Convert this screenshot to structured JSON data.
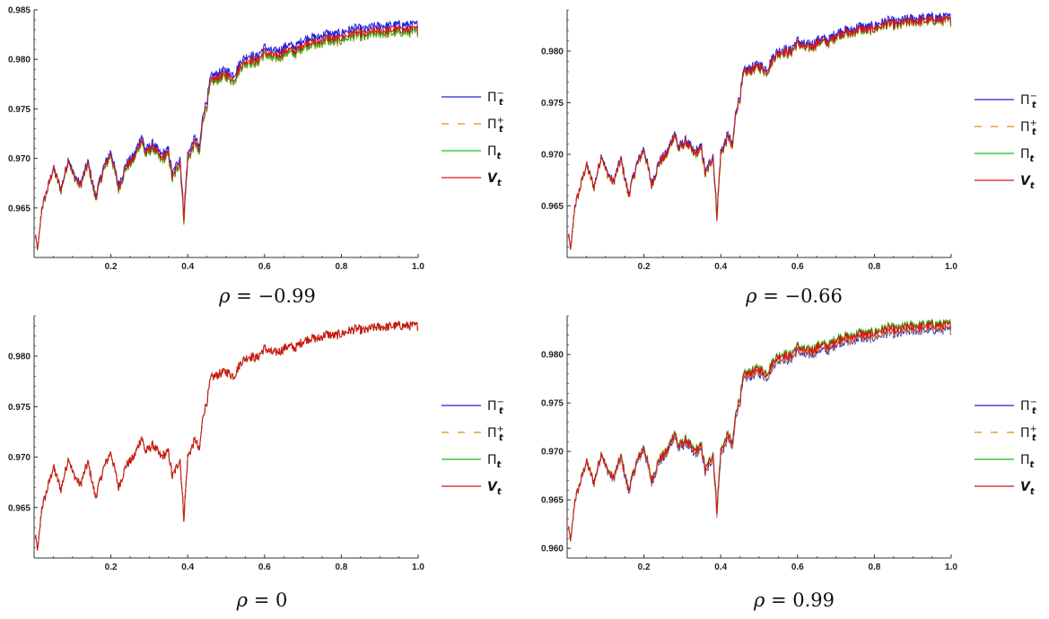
{
  "colors": {
    "pi_minus": "#2222dd",
    "pi_plus": "#e08a1e",
    "pi": "#22bb22",
    "v": "#dd1111",
    "axis": "#333333"
  },
  "chart_data": [
    {
      "type": "line",
      "caption_rho": "ρ",
      "caption_eq": " = ",
      "caption_value": "−0.99",
      "xlim": [
        0,
        1
      ],
      "ylim": [
        0.96,
        0.985
      ],
      "x_ticks": [
        "0.2",
        "0.4",
        "0.6",
        "0.8",
        "1.0"
      ],
      "x_tick_values": [
        0.2,
        0.4,
        0.6,
        0.8,
        1.0
      ],
      "y_ticks": [
        "0.965",
        "0.970",
        "0.975",
        "0.980",
        "0.985"
      ],
      "y_tick_values": [
        0.965,
        0.97,
        0.975,
        0.98,
        0.985
      ],
      "offsets": {
        "pi_minus": 0.0005,
        "pi_plus": -0.0004,
        "pi": -0.0003,
        "v": 0.0
      }
    },
    {
      "type": "line",
      "caption_rho": "ρ",
      "caption_eq": " = ",
      "caption_value": "−0.66",
      "xlim": [
        0,
        1
      ],
      "ylim": [
        0.96,
        0.984
      ],
      "x_ticks": [
        "0.2",
        "0.4",
        "0.6",
        "0.8",
        "1.0"
      ],
      "x_tick_values": [
        0.2,
        0.4,
        0.6,
        0.8,
        1.0
      ],
      "y_ticks": [
        "0.965",
        "0.970",
        "0.975",
        "0.980"
      ],
      "y_tick_values": [
        0.965,
        0.97,
        0.975,
        0.98
      ],
      "offsets": {
        "pi_minus": 0.0003,
        "pi_plus": -0.0002,
        "pi": -0.0001,
        "v": 0.0
      }
    },
    {
      "type": "line",
      "caption_rho": "ρ",
      "caption_eq": " = ",
      "caption_value": "0",
      "xlim": [
        0,
        1
      ],
      "ylim": [
        0.96,
        0.984
      ],
      "x_ticks": [
        "0.2",
        "0.4",
        "0.6",
        "0.8",
        "1.0"
      ],
      "x_tick_values": [
        0.2,
        0.4,
        0.6,
        0.8,
        1.0
      ],
      "y_ticks": [
        "0.965",
        "0.970",
        "0.975",
        "0.980"
      ],
      "y_tick_values": [
        0.965,
        0.97,
        0.975,
        0.98
      ],
      "offsets": {
        "pi_minus": 0.0,
        "pi_plus": 0.0,
        "pi": 0.0,
        "v": 0.0
      }
    },
    {
      "type": "line",
      "caption_rho": "ρ",
      "caption_eq": " = ",
      "caption_value": "0.99",
      "xlim": [
        0,
        1
      ],
      "ylim": [
        0.959,
        0.984
      ],
      "x_ticks": [
        "0.2",
        "0.4",
        "0.6",
        "0.8",
        "1.0"
      ],
      "x_tick_values": [
        0.2,
        0.4,
        0.6,
        0.8,
        1.0
      ],
      "y_ticks": [
        "0.960",
        "0.965",
        "0.970",
        "0.975",
        "0.980"
      ],
      "y_tick_values": [
        0.96,
        0.965,
        0.97,
        0.975,
        0.98
      ],
      "offsets": {
        "pi_minus": -0.0005,
        "pi_plus": -0.0004,
        "pi": 0.0002,
        "v": 0.0
      }
    }
  ],
  "legend": [
    {
      "key": "pi_minus",
      "symbol": "Π",
      "sub": "t",
      "sup": "−",
      "dashed": false
    },
    {
      "key": "pi_plus",
      "symbol": "Π",
      "sub": "t",
      "sup": "+",
      "dashed": true
    },
    {
      "key": "pi",
      "symbol": "Π",
      "sub": "t",
      "sup": "",
      "dashed": false
    },
    {
      "key": "v",
      "symbol": "V",
      "sub": "t",
      "sup": "",
      "dashed": false
    }
  ],
  "base_path": {
    "x": [
      0.0,
      0.01,
      0.02,
      0.03,
      0.05,
      0.07,
      0.09,
      0.1,
      0.12,
      0.14,
      0.16,
      0.18,
      0.2,
      0.22,
      0.24,
      0.26,
      0.28,
      0.29,
      0.31,
      0.33,
      0.35,
      0.36,
      0.38,
      0.39,
      0.4,
      0.42,
      0.43,
      0.44,
      0.45,
      0.46,
      0.48,
      0.5,
      0.52,
      0.54,
      0.56,
      0.58,
      0.6,
      0.62,
      0.64,
      0.66,
      0.68,
      0.7,
      0.72,
      0.74,
      0.76,
      0.78,
      0.8,
      0.82,
      0.84,
      0.86,
      0.88,
      0.9,
      0.92,
      0.94,
      0.96,
      0.98,
      1.0
    ],
    "y": [
      0.9625,
      0.9608,
      0.965,
      0.9662,
      0.969,
      0.9668,
      0.97,
      0.9685,
      0.9672,
      0.9695,
      0.966,
      0.9688,
      0.9705,
      0.967,
      0.9692,
      0.97,
      0.972,
      0.9705,
      0.9712,
      0.97,
      0.9705,
      0.968,
      0.9698,
      0.964,
      0.97,
      0.9718,
      0.9705,
      0.9742,
      0.9755,
      0.9778,
      0.9782,
      0.9785,
      0.978,
      0.9795,
      0.98,
      0.9798,
      0.9808,
      0.9803,
      0.9805,
      0.981,
      0.9808,
      0.9815,
      0.9818,
      0.9817,
      0.9822,
      0.982,
      0.9822,
      0.9825,
      0.9827,
      0.9825,
      0.9828,
      0.9829,
      0.9829,
      0.983,
      0.983,
      0.983,
      0.983
    ]
  }
}
